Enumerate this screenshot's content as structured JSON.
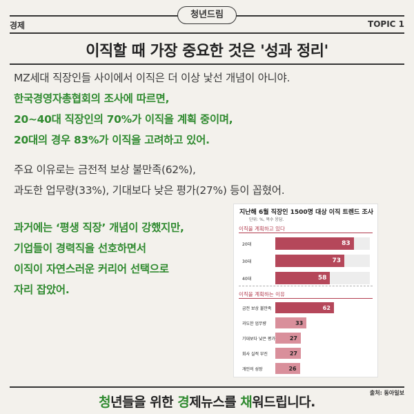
{
  "header": {
    "badge": "청년드림",
    "category": "경제",
    "topic": "TOPIC 1"
  },
  "headline": "이직할 때 가장 중요한 것은 '성과 정리'",
  "paragraphs": {
    "p1": [
      {
        "text": "MZ세대 직장인들 사이에서 이직은 더 이상 낯선 개념이 아니야.",
        "style": "dark"
      },
      {
        "text": "한국경영자총협회의 조사에 따르면,",
        "style": "green"
      },
      {
        "text": "20~40대 직장인의 70%가 이직을 계획 중이며,",
        "style": "green"
      },
      {
        "text": "20대의 경우 83%가 이직을 고려하고 있어.",
        "style": "green"
      }
    ],
    "p2": [
      {
        "text": "주요 이유로는 금전적 보상 불만족(62%),",
        "style": "dark"
      },
      {
        "text": "과도한 업무량(33%), 기대보다 낮은 평가(27%) 등이 꼽혔어.",
        "style": "dark"
      }
    ],
    "p3": [
      {
        "text": "과거에는 ‘평생 직장’ 개념이 강했지만,",
        "style": "green"
      },
      {
        "text": "기업들이 경력직을 선호하면서",
        "style": "green"
      },
      {
        "text": "이직이 자연스러운 커리어 선택으로",
        "style": "green"
      },
      {
        "text": "자리 잡았어.",
        "style": "green"
      }
    ]
  },
  "chart_data": {
    "type": "bar",
    "orientation": "horizontal",
    "title": "지난해 6월 직장인 1500명 대상 이직 트렌드 조사",
    "unit_note": "단위: %, 복수 응답.",
    "xlim": [
      0,
      100
    ],
    "sections": [
      {
        "label": "이직을 계획하고 있다",
        "color": "#b5475a",
        "categories": [
          "20대",
          "30대",
          "40대"
        ],
        "values": [
          83,
          73,
          58
        ]
      },
      {
        "label": "이직을 계획하는 이유",
        "color": "#d98f9b",
        "first_color": "#b5475a",
        "categories": [
          "금전 보상 불만족",
          "과도한 업무량",
          "기대보다 낮은 평가",
          "회사 실적 부진",
          "개인의 성장"
        ],
        "values": [
          62,
          33,
          27,
          27,
          26
        ]
      }
    ]
  },
  "source": "출처: 동아일보",
  "footer": {
    "w1": "청",
    "w2": "년들을 위한 ",
    "w3": "경",
    "w4": "제뉴스를 ",
    "w5": "채",
    "w6": "워드립니다."
  }
}
